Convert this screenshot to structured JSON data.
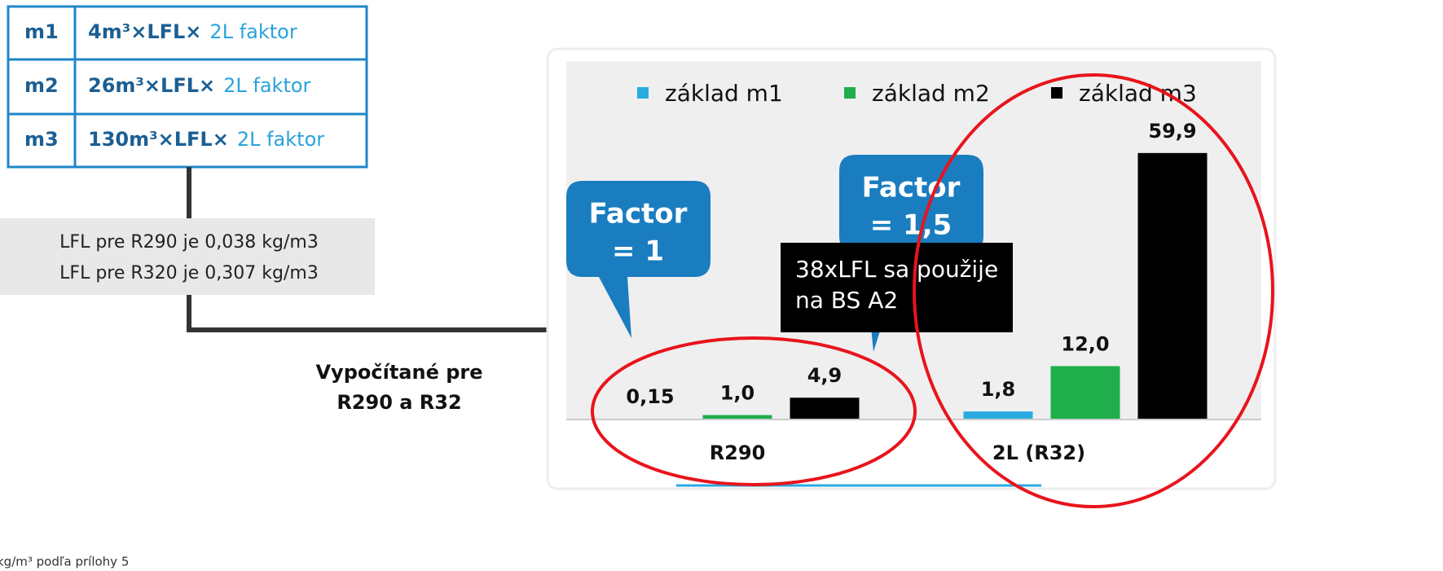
{
  "table": {
    "rows": [
      {
        "id": "m1",
        "formula": "4m³×LFL×",
        "factor": "2L faktor"
      },
      {
        "id": "m2",
        "formula": "26m³×LFL×",
        "factor": "2L faktor"
      },
      {
        "id": "m3",
        "formula": "130m³×LFL×",
        "factor": "2L faktor"
      }
    ]
  },
  "info_box": {
    "lines": [
      "LFL pre R290 je 0,038 kg/m3",
      "LFL pre R320 je 0,307 kg/m3"
    ]
  },
  "calc_label": {
    "lines": [
      "Vypočítané pre",
      "R290 a R32"
    ]
  },
  "callouts": [
    {
      "lines": [
        "Factor",
        "= 1"
      ]
    },
    {
      "lines": [
        "Factor",
        "= 1,5"
      ]
    }
  ],
  "note": {
    "lines": [
      "38xLFL sa použije",
      "na BS A2"
    ]
  },
  "footer": "kg/m³ podľa prílohy 5",
  "chart_data": {
    "type": "bar",
    "categories": [
      "R290",
      "2L (R32)"
    ],
    "series": [
      {
        "name": "základ m1",
        "color": "#29abe2",
        "values": [
          0.15,
          1.8
        ],
        "value_labels": [
          "0,15",
          "1,8"
        ]
      },
      {
        "name": "základ m2",
        "color": "#1fae4b",
        "values": [
          1.0,
          12.0
        ],
        "value_labels": [
          "1,0",
          "12,0"
        ]
      },
      {
        "name": "základ m3",
        "color": "#000000",
        "values": [
          4.9,
          59.9
        ],
        "value_labels": [
          "4,9",
          "59,9"
        ]
      }
    ],
    "ylim": [
      0,
      65
    ],
    "legend": "top"
  }
}
